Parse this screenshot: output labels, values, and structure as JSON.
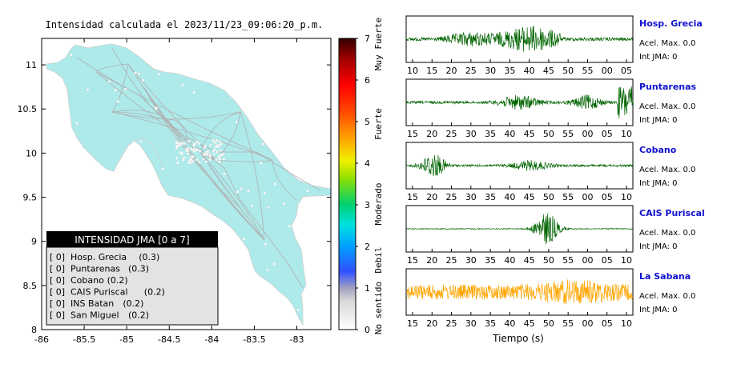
{
  "map": {
    "title": "Intensidad calculada el 2023/11/23_09:06:20_p.m.",
    "x_ticks": [
      "-86",
      "-85.5",
      "-85",
      "-84.5",
      "-84",
      "-83.5",
      "-83"
    ],
    "y_ticks": [
      "11",
      "10.5",
      "10",
      "9.5",
      "9",
      "8.5",
      "8"
    ],
    "xlim": [
      -86,
      -82.6
    ],
    "ylim": [
      8,
      11.3
    ],
    "land_color": "#aeeaea",
    "legend": {
      "title": "INTENSIDAD JMA [0 a 7]",
      "items": [
        {
          "level": "[ 0]",
          "name": "Hosp. Grecia",
          "value": "(0.3)"
        },
        {
          "level": "[ 0]",
          "name": "Puntarenas",
          "value": "(0.3)"
        },
        {
          "level": "[ 0]",
          "name": "Cobano",
          "value": "(0.2)"
        },
        {
          "level": "[ 0]",
          "name": "CAIS Puriscal",
          "value": "(0.2)"
        },
        {
          "level": "[ 0]",
          "name": "INS Batan",
          "value": "(0.2)"
        },
        {
          "level": "[ 0]",
          "name": "San Miguel",
          "value": "(0.2)"
        }
      ]
    }
  },
  "colorbar": {
    "ticks": [
      "7",
      "6",
      "5",
      "4",
      "3",
      "2",
      "1",
      "0"
    ],
    "labels": [
      "Muy Fuerte",
      "Fuerte",
      "Moderado",
      "Debil",
      "No sentido"
    ],
    "range": [
      0,
      7
    ]
  },
  "chart_data": {
    "type": "line",
    "xlabel": "Tiempo (s)",
    "traces": [
      {
        "station": "Hosp. Grecia",
        "acel_label": "Acel. Max. 0.0",
        "int_label": "Int JMA: 0",
        "ticks": [
          "10",
          "15",
          "20",
          "25",
          "30",
          "35",
          "40",
          "45",
          "50",
          "55",
          "00",
          "05"
        ],
        "color": "#006400"
      },
      {
        "station": "Puntarenas",
        "acel_label": "Acel. Max. 0.0",
        "int_label": "Int JMA: 0",
        "ticks": [
          "15",
          "20",
          "25",
          "30",
          "35",
          "40",
          "45",
          "50",
          "55",
          "00",
          "05",
          "10"
        ],
        "color": "#006400"
      },
      {
        "station": "Cobano",
        "acel_label": "Acel. Max. 0.0",
        "int_label": "Int JMA: 0",
        "ticks": [
          "15",
          "20",
          "25",
          "30",
          "35",
          "40",
          "45",
          "50",
          "55",
          "00",
          "05",
          "10"
        ],
        "color": "#006400"
      },
      {
        "station": "CAIS Puriscal",
        "acel_label": "Acel. Max. 0.0",
        "int_label": "Int JMA: 0",
        "ticks": [
          "15",
          "20",
          "25",
          "30",
          "35",
          "40",
          "45",
          "50",
          "55",
          "00",
          "05",
          "10"
        ],
        "color": "#006400"
      },
      {
        "station": "La Sabana",
        "acel_label": "Acel. Max. 0.0",
        "int_label": "Int JMA: 0",
        "ticks": [
          "15",
          "20",
          "25",
          "30",
          "35",
          "40",
          "45",
          "50",
          "55",
          "00",
          "05",
          "10"
        ],
        "color": "#ffa500"
      }
    ]
  }
}
